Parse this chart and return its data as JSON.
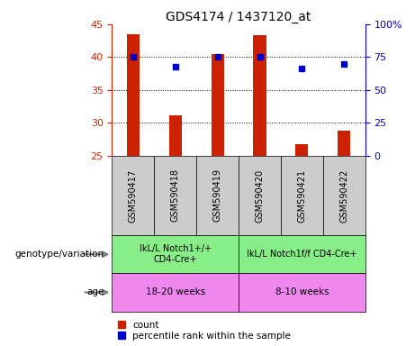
{
  "title": "GDS4174 / 1437120_at",
  "samples": [
    "GSM590417",
    "GSM590418",
    "GSM590419",
    "GSM590420",
    "GSM590421",
    "GSM590422"
  ],
  "bar_values": [
    43.5,
    31.2,
    40.5,
    43.3,
    26.7,
    28.8
  ],
  "bar_base": 25.0,
  "percentile_values": [
    75,
    68,
    75,
    75,
    66,
    70
  ],
  "ylim_left": [
    25,
    45
  ],
  "ylim_right": [
    0,
    100
  ],
  "yticks_left": [
    25,
    30,
    35,
    40,
    45
  ],
  "yticks_right": [
    0,
    25,
    50,
    75,
    100
  ],
  "ytick_labels_right": [
    "0",
    "25",
    "50",
    "75",
    "100%"
  ],
  "bar_color": "#cc2200",
  "dot_color": "#0000cc",
  "grid_color": "#000000",
  "geno_groups": [
    {
      "label": "IkL/L Notch1+/+\nCD4-Cre+",
      "start": 0,
      "end": 3
    },
    {
      "label": "IkL/L Notch1f/f CD4-Cre+",
      "start": 3,
      "end": 6
    }
  ],
  "age_groups": [
    {
      "label": "18-20 weeks",
      "start": 0,
      "end": 3
    },
    {
      "label": "8-10 weeks",
      "start": 3,
      "end": 6
    }
  ],
  "geno_color": "#88ee88",
  "age_color": "#ee88ee",
  "sample_box_color": "#cccccc",
  "genotype_label": "genotype/variation",
  "age_label": "age",
  "legend_items": [
    {
      "label": "count",
      "color": "#cc2200"
    },
    {
      "label": "percentile rank within the sample",
      "color": "#0000cc"
    }
  ]
}
